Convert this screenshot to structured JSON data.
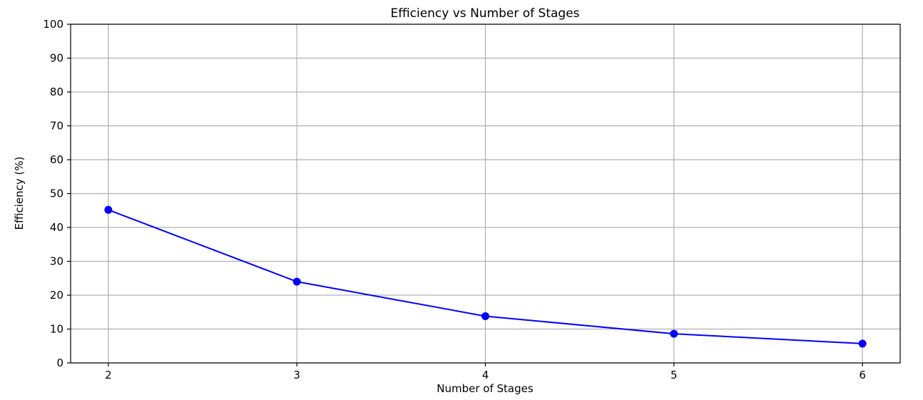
{
  "chart_data": {
    "type": "line",
    "title": "Efficiency vs Number of Stages",
    "xlabel": "Number of Stages",
    "ylabel": "Efficiency (%)",
    "x": [
      2,
      3,
      4,
      5,
      6
    ],
    "xticks": [
      "2",
      "3",
      "4",
      "5",
      "6"
    ],
    "xlim": [
      1.8,
      6.2
    ],
    "ylim": [
      0,
      100
    ],
    "yticks": [
      "0",
      "10",
      "20",
      "30",
      "40",
      "50",
      "60",
      "70",
      "80",
      "90",
      "100"
    ],
    "grid": true,
    "series": [
      {
        "values": [
          45.2,
          24.0,
          13.8,
          8.6,
          5.7
        ],
        "color": "#0000ff",
        "marker": "circle"
      }
    ]
  }
}
